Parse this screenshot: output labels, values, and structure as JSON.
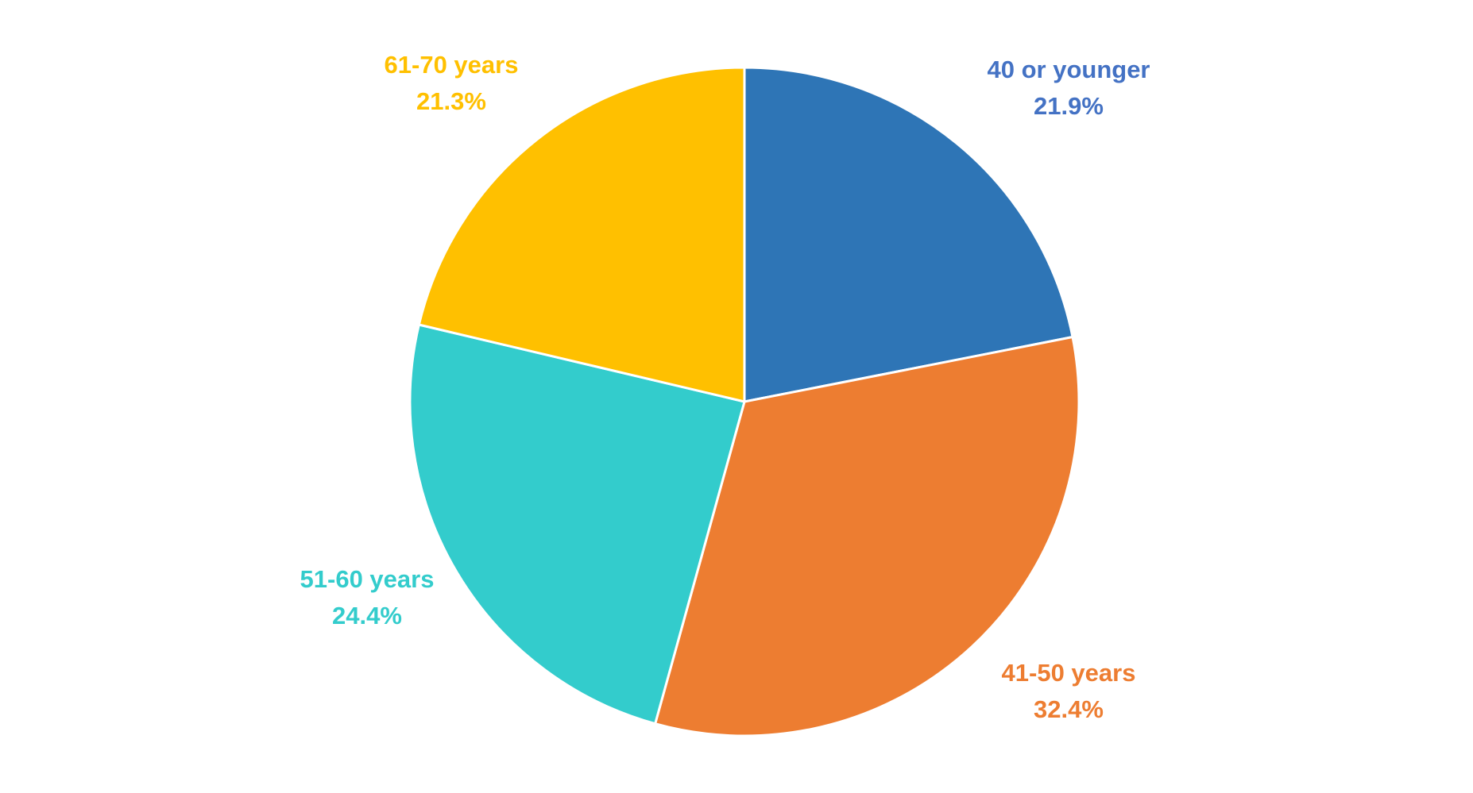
{
  "chart_data": {
    "type": "pie",
    "title": "",
    "start_angle_deg": 0,
    "direction": "clockwise",
    "slices": [
      {
        "label": "40 or younger",
        "value": 21.9,
        "value_label": "21.9%",
        "color": "#2E75B6"
      },
      {
        "label": "41-50 years",
        "value": 32.4,
        "value_label": "32.4%",
        "color": "#ED7D31"
      },
      {
        "label": "51-60 years",
        "value": 24.4,
        "value_label": "24.4%",
        "color": "#33CCCC"
      },
      {
        "label": "61-70 years",
        "value": 21.3,
        "value_label": "21.3%",
        "color": "#FFC000"
      }
    ],
    "label_colors": [
      "#4472C4",
      "#ED7D31",
      "#33CCCC",
      "#FFC000"
    ],
    "slice_border_color": "#FFFFFF",
    "legend": "none"
  }
}
